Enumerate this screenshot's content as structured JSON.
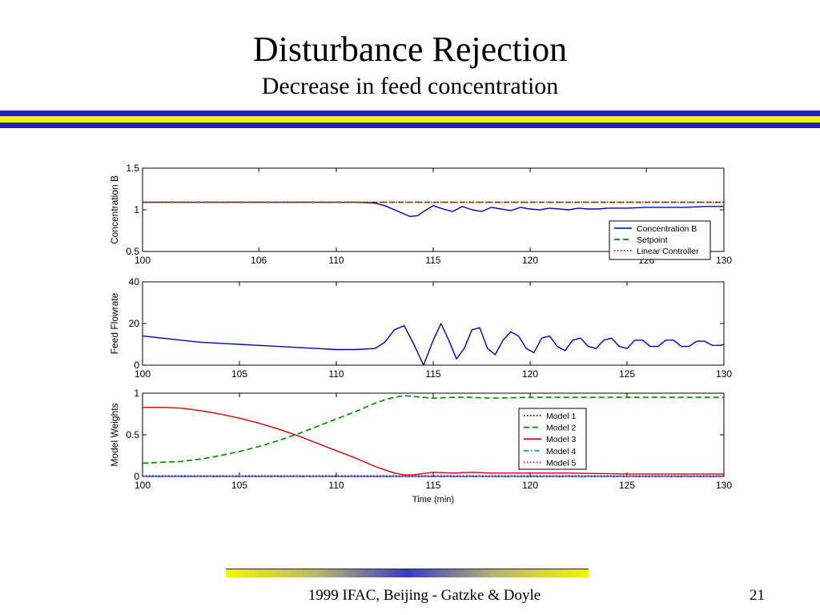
{
  "slide": {
    "title": "Disturbance Rejection",
    "subtitle": "Decrease in feed concentration",
    "footer": "1999 IFAC, Beijing - Gatzke & Doyle",
    "page_number": "21",
    "colors": {
      "stripe_blue": "#2222bb",
      "stripe_yellow": "#f5f500"
    }
  },
  "chart_data": [
    {
      "type": "line",
      "ylabel": "Concentration B",
      "xlim": [
        100,
        130
      ],
      "ylim": [
        0.5,
        1.5
      ],
      "xticks": [
        100,
        106,
        110,
        115,
        120,
        126,
        130
      ],
      "yticks": [
        0.5,
        1,
        1.5
      ],
      "legend": "bottom-right",
      "series": [
        {
          "name": "Concentration B",
          "color": "#0000cc",
          "style": "solid",
          "x": [
            100,
            104,
            108,
            111,
            112,
            112.5,
            113,
            113.5,
            113.8,
            114.2,
            114.5,
            115,
            115.5,
            116,
            116.5,
            117,
            117.5,
            118,
            118.5,
            119,
            119.5,
            120,
            120.5,
            121,
            121.5,
            122,
            122.5,
            123,
            123.5,
            124,
            125,
            126,
            127,
            128,
            129,
            130
          ],
          "y": [
            1.09,
            1.09,
            1.09,
            1.09,
            1.08,
            1.05,
            1.0,
            0.95,
            0.92,
            0.93,
            0.98,
            1.05,
            1.01,
            0.98,
            1.04,
            1.0,
            0.98,
            1.03,
            1.01,
            0.99,
            1.03,
            1.01,
            1.0,
            1.02,
            1.01,
            1.0,
            1.02,
            1.01,
            1.01,
            1.02,
            1.02,
            1.03,
            1.03,
            1.03,
            1.04,
            1.04
          ]
        },
        {
          "name": "Setpoint",
          "color": "#008800",
          "style": "dashed",
          "x": [
            100,
            130
          ],
          "y": [
            1.09,
            1.09
          ]
        },
        {
          "name": "Linear Controller",
          "color": "#cc0000",
          "style": "dotted",
          "x": [
            100,
            130
          ],
          "y": [
            1.09,
            1.09
          ]
        }
      ]
    },
    {
      "type": "line",
      "ylabel": "Feed Flowrate",
      "xlim": [
        100,
        130
      ],
      "ylim": [
        0,
        40
      ],
      "xticks": [
        100,
        105,
        110,
        115,
        120,
        125,
        130
      ],
      "yticks": [
        0,
        20,
        40
      ],
      "series": [
        {
          "name": "",
          "color": "#0000cc",
          "style": "solid",
          "x": [
            100,
            101,
            102,
            103,
            104,
            105,
            106,
            107,
            108,
            109,
            110,
            111,
            112,
            112.5,
            113,
            113.5,
            114,
            114.5,
            115,
            115.4,
            115.8,
            116.2,
            116.6,
            117,
            117.4,
            117.8,
            118.2,
            118.6,
            119,
            119.4,
            119.8,
            120.2,
            120.6,
            121,
            121.4,
            121.8,
            122.2,
            122.6,
            123,
            123.4,
            123.8,
            124.2,
            124.6,
            125,
            125.4,
            125.8,
            126.2,
            126.6,
            127,
            127.4,
            127.8,
            128.2,
            128.6,
            129,
            129.4,
            129.8,
            130
          ],
          "y": [
            14,
            13,
            12,
            11,
            10.5,
            10,
            9.5,
            9,
            8.5,
            8,
            7.5,
            7.5,
            8,
            11,
            17,
            19,
            10,
            0,
            12,
            20,
            12,
            3,
            8,
            17,
            18,
            8,
            5,
            12,
            16,
            14,
            8,
            6,
            13,
            14,
            9,
            7,
            12,
            13,
            9,
            8,
            12,
            13,
            9,
            8,
            12,
            12,
            9,
            9,
            12,
            12,
            9,
            9,
            11.5,
            11.5,
            9.5,
            9.5,
            10
          ]
        }
      ]
    },
    {
      "type": "line",
      "ylabel": "Model Weights",
      "xlabel": "Time (min)",
      "xlim": [
        100,
        130
      ],
      "ylim": [
        0,
        1
      ],
      "xticks": [
        100,
        105,
        110,
        115,
        120,
        125,
        130
      ],
      "yticks": [
        0,
        0.5,
        1
      ],
      "legend": "center-right",
      "series": [
        {
          "name": "Model 1",
          "color": "#000088",
          "style": "dotted",
          "x": [
            100,
            130
          ],
          "y": [
            0.0,
            0.0
          ]
        },
        {
          "name": "Model 2",
          "color": "#008800",
          "style": "dashed",
          "x": [
            100,
            101,
            102,
            103,
            104,
            105,
            106,
            107,
            108,
            109,
            110,
            111,
            112,
            112.5,
            113,
            113.5,
            114,
            115,
            116,
            117,
            118,
            120,
            122,
            125,
            128,
            130
          ],
          "y": [
            0.16,
            0.17,
            0.18,
            0.21,
            0.25,
            0.3,
            0.36,
            0.43,
            0.51,
            0.6,
            0.69,
            0.78,
            0.88,
            0.92,
            0.95,
            0.97,
            0.96,
            0.94,
            0.95,
            0.95,
            0.94,
            0.95,
            0.95,
            0.95,
            0.95,
            0.95
          ]
        },
        {
          "name": "Model 3",
          "color": "#dd0000",
          "style": "solid",
          "x": [
            100,
            101,
            102,
            103,
            104,
            105,
            106,
            107,
            108,
            109,
            110,
            111,
            112,
            112.5,
            113,
            113.5,
            114,
            115,
            116,
            117,
            118,
            120,
            122,
            125,
            128,
            130
          ],
          "y": [
            0.83,
            0.83,
            0.82,
            0.79,
            0.75,
            0.7,
            0.64,
            0.57,
            0.49,
            0.4,
            0.31,
            0.22,
            0.12,
            0.08,
            0.04,
            0.02,
            0.02,
            0.05,
            0.04,
            0.05,
            0.04,
            0.04,
            0.04,
            0.03,
            0.03,
            0.03
          ]
        },
        {
          "name": "Model 4",
          "color": "#00aacc",
          "style": "dashdot",
          "x": [
            100,
            130
          ],
          "y": [
            0.005,
            0.005
          ]
        },
        {
          "name": "Model 5",
          "color": "#cc00cc",
          "style": "dotted",
          "x": [
            100,
            130
          ],
          "y": [
            0.01,
            0.01
          ]
        }
      ]
    }
  ]
}
